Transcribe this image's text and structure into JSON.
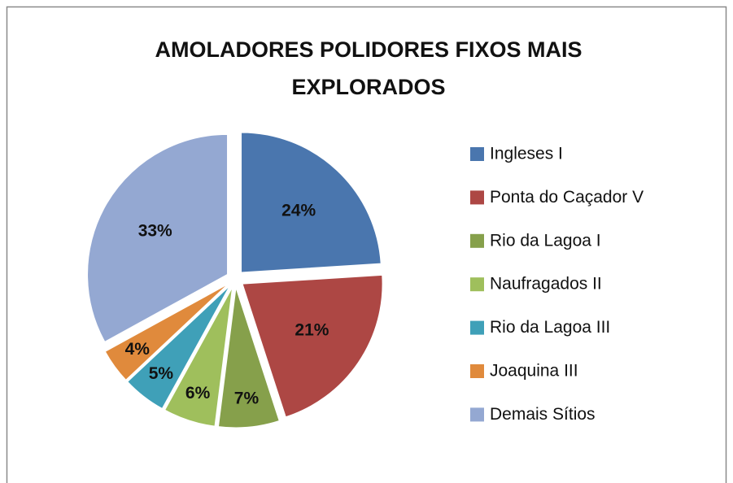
{
  "chart_data": {
    "type": "pie",
    "title": "AMOLADORES POLIDORES FIXOS MAIS EXPLORADOS",
    "categories": [
      "Ingleses I",
      "Ponta do Caçador V",
      "Rio da Lagoa I",
      "Naufragados II",
      "Rio da Lagoa III",
      "Joaquina III",
      "Demais Sítios"
    ],
    "values": [
      24,
      21,
      7,
      6,
      5,
      4,
      33
    ],
    "value_labels": [
      "24%",
      "21%",
      "7%",
      "6%",
      "5%",
      "4%",
      "33%"
    ],
    "colors": [
      "#4a76ae",
      "#ad4744",
      "#86a04b",
      "#9fbf5c",
      "#3fa0b8",
      "#e08a3c",
      "#94a8d2"
    ],
    "legend": "right"
  }
}
